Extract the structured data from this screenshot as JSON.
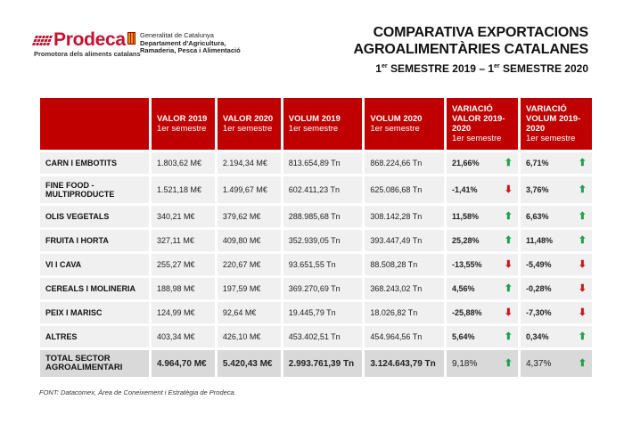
{
  "logos": {
    "prodeca": "Prodeca",
    "prodeca_tagline": "Promotora dels aliments catalans",
    "gen_line1": "Generalitat de Catalunya",
    "gen_line2": "Departament d'Agricultura,",
    "gen_line3": "Ramaderia, Pesca i Alimentació"
  },
  "title": {
    "line1": "COMPARATIVA EXPORTACIONS",
    "line2": "AGROALIMENTÀRIES CATALANES",
    "line3_a": "1",
    "line3_sup_a": "er",
    "line3_b": " SEMESTRE 2019 – 1",
    "line3_sup_b": "er",
    "line3_c": " SEMESTRE 2020"
  },
  "headers": [
    {
      "main": "VALOR 2019",
      "sub": "1er semestre"
    },
    {
      "main": "VALOR 2020",
      "sub": "1er semestre"
    },
    {
      "main": "VOLUM 2019",
      "sub": "1er semestre"
    },
    {
      "main": "VOLUM 2020",
      "sub": "1er semestre"
    },
    {
      "main": "VARIACIÓ VALOR 2019-2020",
      "sub": "1er semestre"
    },
    {
      "main": "VARIACIÓ VOLUM 2019-2020",
      "sub": "1er semestre"
    }
  ],
  "rows": [
    {
      "label": "CARN I EMBOTITS",
      "v19": "1.803,62 M€",
      "v20": "2.194,34 M€",
      "vol19": "813.654,89 Tn",
      "vol20": "868.224,66 Tn",
      "var_val": "21,66%",
      "var_val_dir": "up",
      "var_vol": "6,71%",
      "var_vol_dir": "up"
    },
    {
      "label": "FINE FOOD - MULTIPRODUCTE",
      "v19": "1.521,18 M€",
      "v20": "1.499,67 M€",
      "vol19": "602.411,23 Tn",
      "vol20": "625.086,68 Tn",
      "var_val": "-1,41%",
      "var_val_dir": "down",
      "var_vol": "3,76%",
      "var_vol_dir": "up"
    },
    {
      "label": "OLIS VEGETALS",
      "v19": "340,21 M€",
      "v20": "379,62 M€",
      "vol19": "288.985,68 Tn",
      "vol20": "308.142,28 Tn",
      "var_val": "11,58%",
      "var_val_dir": "up",
      "var_vol": "6,63%",
      "var_vol_dir": "up"
    },
    {
      "label": "FRUITA I HORTA",
      "v19": "327,11 M€",
      "v20": "409,80 M€",
      "vol19": "352.939,05 Tn",
      "vol20": "393.447,49 Tn",
      "var_val": "25,28%",
      "var_val_dir": "up",
      "var_vol": "11,48%",
      "var_vol_dir": "up"
    },
    {
      "label": "VI I CAVA",
      "v19": "255,27 M€",
      "v20": "220,67 M€",
      "vol19": "93.651,55 Tn",
      "vol20": "88.508,28 Tn",
      "var_val": "-13,55%",
      "var_val_dir": "down",
      "var_vol": "-5,49%",
      "var_vol_dir": "down"
    },
    {
      "label": "CEREALS I MOLINERIA",
      "v19": "188,98 M€",
      "v20": "197,59 M€",
      "vol19": "369.270,69 Tn",
      "vol20": "368.243,02 Tn",
      "var_val": "4,56%",
      "var_val_dir": "up",
      "var_vol": "-0,28%",
      "var_vol_dir": "down"
    },
    {
      "label": "PEIX I MARISC",
      "v19": "124,99 M€",
      "v20": "92,64 M€",
      "vol19": "19.445,79 Tn",
      "vol20": "18.026,82 Tn",
      "var_val": "-25,88%",
      "var_val_dir": "down",
      "var_vol": "-7,30%",
      "var_vol_dir": "down"
    },
    {
      "label": "ALTRES",
      "v19": "403,34 M€",
      "v20": "426,10 M€",
      "vol19": "453.402,51 Tn",
      "vol20": "454.964,56 Tn",
      "var_val": "5,64%",
      "var_val_dir": "up",
      "var_vol": "0,34%",
      "var_vol_dir": "up"
    }
  ],
  "total": {
    "label": "TOTAL SECTOR AGROALIMENTARI",
    "v19": "4.964,70 M€",
    "v20": "5.420,43 M€",
    "vol19": "2.993.761,39 Tn",
    "vol20": "3.124.643,79 Tn",
    "var_val": "9,18%",
    "var_val_dir": "up",
    "var_vol": "4,37%",
    "var_vol_dir": "up"
  },
  "source": "FONT:  Datacomex, Àrea de Coneixement i Estratègia de Prodeca.",
  "colors": {
    "header": "#c00000",
    "up": "#19a34a",
    "down": "#d0121b",
    "row": "#f0f0f0",
    "total": "#d9d9d9"
  }
}
